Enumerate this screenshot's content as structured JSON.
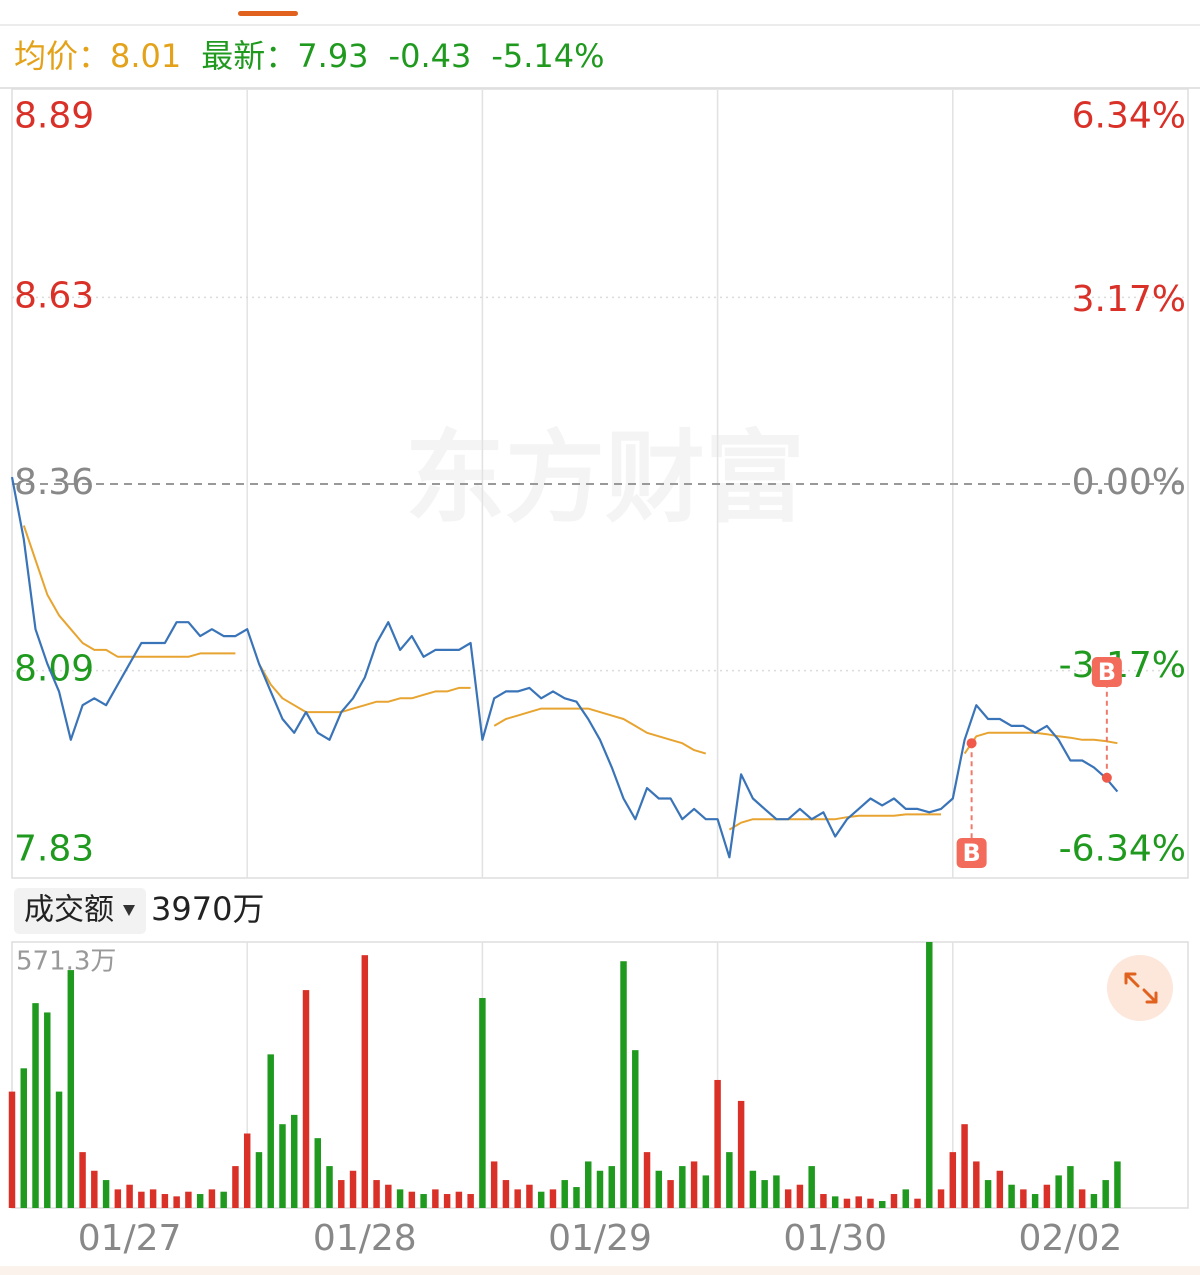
{
  "chart_data": {
    "type": "line",
    "stats": [
      {
        "label": "均价：",
        "value": 8.01,
        "color": "#e3a21a"
      },
      {
        "label": "最新：",
        "value": 7.93,
        "color": "#1f9a1f"
      },
      {
        "value": -0.43,
        "color": "#1f9a1f"
      },
      {
        "value": -5.14,
        "value_label": "-5.14%",
        "color": "#1f9a1f"
      }
    ],
    "watermark": "东方财富",
    "xlim": [
      0,
      100
    ],
    "xticks": [
      20,
      40,
      60,
      80
    ],
    "days": [
      "01/27",
      "01/28",
      "01/29",
      "01/30",
      "02/02"
    ],
    "x": [
      0,
      1,
      2,
      3,
      4,
      5,
      6,
      7,
      8,
      9,
      10,
      11,
      12,
      13,
      14,
      15,
      16,
      17,
      18,
      19,
      20,
      21,
      22,
      23,
      24,
      25,
      26,
      27,
      28,
      29,
      30,
      31,
      32,
      33,
      34,
      35,
      36,
      37,
      38,
      39,
      40,
      41,
      42,
      43,
      44,
      45,
      46,
      47,
      48,
      49,
      50,
      51,
      52,
      53,
      54,
      55,
      56,
      57,
      58,
      59,
      60,
      61,
      62,
      63,
      64,
      65,
      66,
      67,
      68,
      69,
      70,
      71,
      72,
      73,
      74,
      75,
      76,
      77,
      78,
      79,
      80,
      81,
      82,
      83,
      84,
      85,
      86,
      87,
      88,
      89,
      90,
      91,
      92,
      93,
      94,
      95,
      96,
      97,
      98,
      99
    ],
    "ylim": [
      7.79,
      8.93
    ],
    "yticks": [
      8.89,
      8.63,
      8.36,
      8.09,
      7.83
    ],
    "y2lim": [
      -6.82,
      6.82
    ],
    "y2ticks": [
      {
        "value": 6.34,
        "label": "6.34%"
      },
      {
        "value": 3.17,
        "label": "3.17%"
      },
      {
        "value": 0,
        "label": "0.00%"
      },
      {
        "value": -3.17,
        "label": "-3.17%"
      },
      {
        "value": -6.34,
        "label": "-6.34%"
      }
    ],
    "up_color": "#d93028",
    "down_color": "#1f9a1f",
    "flat_color": "#888888",
    "series": [
      {
        "color": "#3a74b8",
        "values": [
          8.37,
          8.28,
          8.15,
          8.1,
          8.06,
          7.99,
          8.04,
          8.05,
          8.04,
          8.07,
          8.1,
          8.13,
          8.13,
          8.13,
          8.16,
          8.16,
          8.14,
          8.15,
          8.14,
          8.14,
          8.15,
          8.1,
          8.06,
          8.02,
          8.0,
          8.03,
          8.0,
          7.99,
          8.03,
          8.05,
          8.08,
          8.13,
          8.16,
          8.12,
          8.14,
          8.11,
          8.12,
          8.12,
          8.12,
          8.13,
          7.99,
          8.05,
          8.06,
          8.06,
          8.065,
          8.05,
          8.06,
          8.05,
          8.045,
          8.02,
          7.99,
          7.95,
          7.905,
          7.875,
          7.92,
          7.905,
          7.905,
          7.875,
          7.89,
          7.875,
          7.875,
          7.82,
          7.94,
          7.905,
          7.89,
          7.875,
          7.875,
          7.89,
          7.875,
          7.885,
          7.85,
          7.875,
          7.89,
          7.905,
          7.895,
          7.905,
          7.89,
          7.89,
          7.885,
          7.89,
          7.905,
          7.99,
          8.04,
          8.02,
          8.02,
          8.01,
          8.01,
          8.0,
          8.01,
          7.99,
          7.96,
          7.96,
          7.95,
          7.935,
          7.915,
          null,
          null,
          null,
          null,
          null
        ]
      },
      {
        "color": "#e8a430",
        "values": [
          null,
          8.3,
          8.25,
          8.2,
          8.17,
          8.15,
          8.13,
          8.12,
          8.12,
          8.11,
          8.11,
          8.11,
          8.11,
          8.11,
          8.11,
          8.11,
          8.115,
          8.115,
          8.115,
          8.115,
          null,
          8.1,
          8.07,
          8.05,
          8.04,
          8.03,
          8.03,
          8.03,
          8.03,
          8.035,
          8.04,
          8.045,
          8.045,
          8.05,
          8.05,
          8.055,
          8.06,
          8.06,
          8.065,
          8.065,
          null,
          8.01,
          8.02,
          8.025,
          8.03,
          8.035,
          8.035,
          8.035,
          8.035,
          8.035,
          8.03,
          8.025,
          8.02,
          8.01,
          8.0,
          7.995,
          7.99,
          7.985,
          7.975,
          7.97,
          null,
          7.86,
          7.87,
          7.875,
          7.875,
          7.875,
          7.875,
          7.875,
          7.875,
          7.875,
          7.875,
          7.878,
          7.88,
          7.88,
          7.88,
          7.88,
          7.882,
          7.882,
          7.882,
          7.882,
          null,
          7.97,
          7.995,
          8.0,
          8.0,
          8.0,
          8.0,
          8.0,
          7.998,
          7.995,
          7.993,
          7.99,
          7.99,
          7.988,
          7.985,
          null,
          null,
          null,
          null,
          null
        ]
      }
    ],
    "markers": [
      {
        "label": "B",
        "x": 81.6,
        "y": 7.985,
        "side": "below"
      },
      {
        "label": "B",
        "x": 93.1,
        "y": 7.935,
        "side": "above"
      }
    ],
    "volume": {
      "title": "成交额",
      "total": 3970,
      "total_label": "3970万",
      "ylim": [
        0,
        571.3
      ],
      "yticks": [
        {
          "value": 571.3,
          "label": "571.3万"
        }
      ],
      "values": [
        250,
        300,
        440,
        420,
        250,
        511,
        120,
        80,
        60,
        40,
        50,
        35,
        40,
        30,
        25,
        35,
        30,
        40,
        35,
        90,
        160,
        120,
        330,
        180,
        200,
        468,
        150,
        90,
        60,
        80,
        543,
        60,
        50,
        40,
        35,
        30,
        40,
        30,
        35,
        30,
        451,
        100,
        60,
        40,
        50,
        35,
        40,
        60,
        45,
        100,
        80,
        90,
        530,
        339,
        120,
        80,
        60,
        90,
        100,
        70,
        275,
        120,
        230,
        80,
        60,
        70,
        40,
        50,
        90,
        30,
        25,
        20,
        25,
        20,
        15,
        30,
        40,
        20,
        571.3,
        40,
        120,
        180,
        100,
        60,
        80,
        50,
        40,
        30,
        50,
        70,
        90,
        40,
        30,
        60,
        100,
        null,
        null,
        null,
        null,
        null
      ]
    }
  }
}
